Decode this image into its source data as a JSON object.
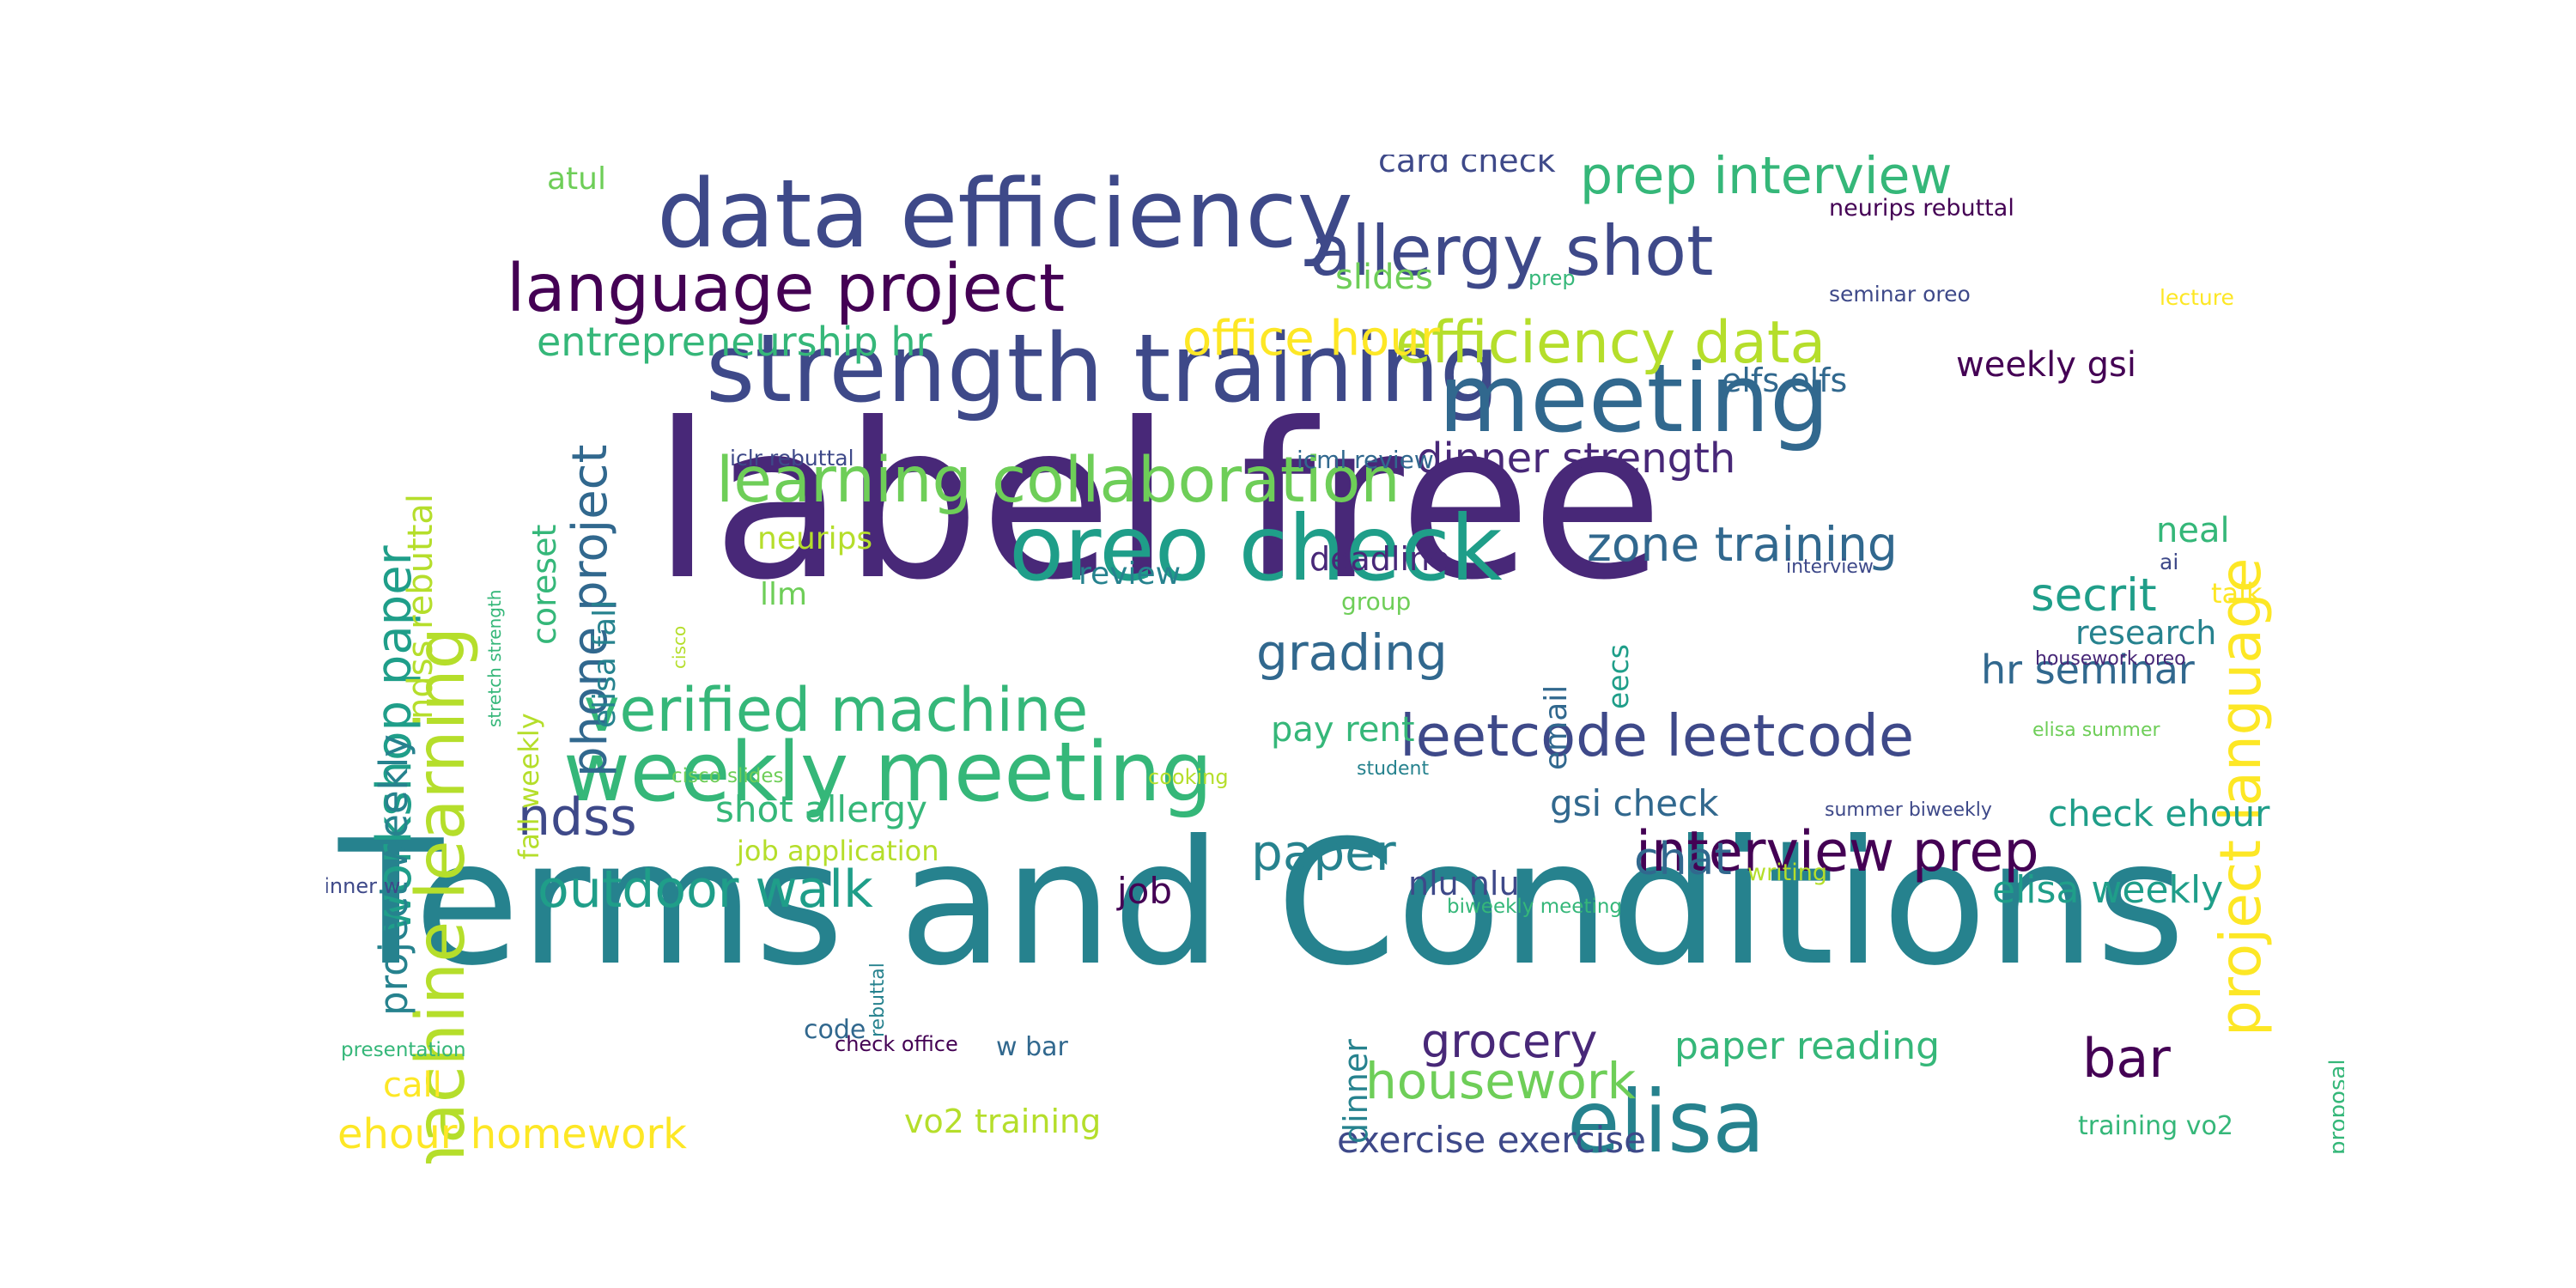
{
  "palette": [
    "#440154",
    "#482878",
    "#3e4989",
    "#31688e",
    "#26828e",
    "#1f9e89",
    "#35b779",
    "#6ece58",
    "#b5de2b",
    "#fde725"
  ],
  "words": [
    {
      "text": "label free",
      "color": "#482878"
    },
    {
      "text": "Terms and Conditions",
      "color": "#26828e"
    },
    {
      "text": "strength training",
      "color": "#3e4989"
    },
    {
      "text": "data efficiency",
      "color": "#3e4989"
    },
    {
      "text": "oreo check",
      "color": "#1f9e89"
    },
    {
      "text": "meeting",
      "color": "#31688e"
    },
    {
      "text": "weekly meeting",
      "color": "#35b779"
    },
    {
      "text": "machine learning",
      "color": "#b5de2b"
    },
    {
      "text": "language project",
      "color": "#440154"
    },
    {
      "text": "allergy shot",
      "color": "#3e4989"
    },
    {
      "text": "learning collaboration",
      "color": "#6ece58"
    },
    {
      "text": "verified machine",
      "color": "#35b779"
    },
    {
      "text": "leetcode leetcode",
      "color": "#3e4989"
    },
    {
      "text": "elisa",
      "color": "#26828e"
    },
    {
      "text": "efficiency data",
      "color": "#b5de2b"
    },
    {
      "text": "project language",
      "color": "#fde725"
    },
    {
      "text": "interview prep",
      "color": "#440154"
    },
    {
      "text": "prep interview",
      "color": "#35b779"
    },
    {
      "text": "workshop paper",
      "color": "#1f9e89"
    },
    {
      "text": "outdoor walk",
      "color": "#1f9e89"
    },
    {
      "text": "phone project",
      "color": "#31688e"
    },
    {
      "text": "zone training",
      "color": "#31688e"
    },
    {
      "text": "office hour",
      "color": "#fde725"
    },
    {
      "text": "entrepreneurship hr",
      "color": "#35b779"
    },
    {
      "text": "dinner strength",
      "color": "#482878"
    },
    {
      "text": "housework",
      "color": "#6ece58"
    },
    {
      "text": "ndss",
      "color": "#3e4989"
    },
    {
      "text": "paper",
      "color": "#26828e"
    },
    {
      "text": "grocery",
      "color": "#482878"
    },
    {
      "text": "bar",
      "color": "#440154"
    },
    {
      "text": "grading",
      "color": "#31688e"
    },
    {
      "text": "project weekly",
      "color": "#26828e"
    },
    {
      "text": "secrit",
      "color": "#1f9e89"
    },
    {
      "text": "chat",
      "color": "#31688e"
    },
    {
      "text": "ehour homework",
      "color": "#fde725"
    },
    {
      "text": "exercise exercise",
      "color": "#3e4989"
    },
    {
      "text": "paper reading",
      "color": "#35b779"
    },
    {
      "text": "hr seminar",
      "color": "#31688e"
    },
    {
      "text": "shot allergy",
      "color": "#35b779"
    },
    {
      "text": "ndss rebuttal",
      "color": "#b5de2b"
    },
    {
      "text": "elisa weekly",
      "color": "#1f9e89"
    },
    {
      "text": "check ehour",
      "color": "#1f9e89"
    },
    {
      "text": "coreset",
      "color": "#35b779"
    },
    {
      "text": "pay rent",
      "color": "#35b779"
    },
    {
      "text": "gsi check",
      "color": "#31688e"
    },
    {
      "text": "weekly gsi",
      "color": "#440154"
    },
    {
      "text": "card check",
      "color": "#3e4989"
    },
    {
      "text": "elfs elfs",
      "color": "#31688e"
    },
    {
      "text": "elisa fall",
      "color": "#26828e"
    },
    {
      "text": "research",
      "color": "#26828e"
    },
    {
      "text": "slides",
      "color": "#6ece58"
    },
    {
      "text": "vo2 training",
      "color": "#b5de2b"
    },
    {
      "text": "job",
      "color": "#440154"
    },
    {
      "text": "nlu nlu",
      "color": "#3e4989"
    },
    {
      "text": "dinner",
      "color": "#26828e"
    },
    {
      "text": "review",
      "color": "#26828e"
    },
    {
      "text": "deadline",
      "color": "#482878"
    },
    {
      "text": "call",
      "color": "#fde725"
    },
    {
      "text": "neal",
      "color": "#35b779"
    },
    {
      "text": "email",
      "color": "#31688e"
    },
    {
      "text": "atul",
      "color": "#6ece58"
    },
    {
      "text": "neurips",
      "color": "#b5de2b"
    },
    {
      "text": "llm",
      "color": "#6ece58"
    },
    {
      "text": "fall weekly",
      "color": "#b5de2b"
    },
    {
      "text": "eecs",
      "color": "#1f9e89"
    },
    {
      "text": "job application",
      "color": "#b5de2b"
    },
    {
      "text": "talk",
      "color": "#fde725"
    },
    {
      "text": "code",
      "color": "#31688e"
    },
    {
      "text": "training vo2",
      "color": "#35b779"
    },
    {
      "text": "proposal",
      "color": "#35b779"
    },
    {
      "text": "w bar",
      "color": "#31688e"
    },
    {
      "text": "group",
      "color": "#6ece58"
    },
    {
      "text": "neurips rebuttal",
      "color": "#440154"
    },
    {
      "text": "iclr rebuttal",
      "color": "#3e4989"
    },
    {
      "text": "icml review",
      "color": "#31688e"
    },
    {
      "text": "seminar oreo",
      "color": "#3e4989"
    },
    {
      "text": "lecture",
      "color": "#fde725"
    },
    {
      "text": "prep",
      "color": "#35b779"
    },
    {
      "text": "stretch strength",
      "color": "#35b779"
    },
    {
      "text": "cisco",
      "color": "#b5de2b"
    },
    {
      "text": "ai",
      "color": "#3e4989"
    },
    {
      "text": "interview",
      "color": "#3e4989"
    },
    {
      "text": "housework oreo",
      "color": "#482878"
    },
    {
      "text": "elisa summer",
      "color": "#6ece58"
    },
    {
      "text": "student",
      "color": "#26828e"
    },
    {
      "text": "cooking",
      "color": "#b5de2b"
    },
    {
      "text": "cisco slides",
      "color": "#6ece58"
    },
    {
      "text": "summer biweekly",
      "color": "#3e4989"
    },
    {
      "text": "writing",
      "color": "#b5de2b"
    },
    {
      "text": "biweekly meeting",
      "color": "#35b779"
    },
    {
      "text": "dinner w",
      "color": "#3e4989"
    },
    {
      "text": "presentation",
      "color": "#35b779"
    },
    {
      "text": "check office",
      "color": "#440154"
    },
    {
      "text": "rebuttal",
      "color": "#26828e"
    }
  ]
}
